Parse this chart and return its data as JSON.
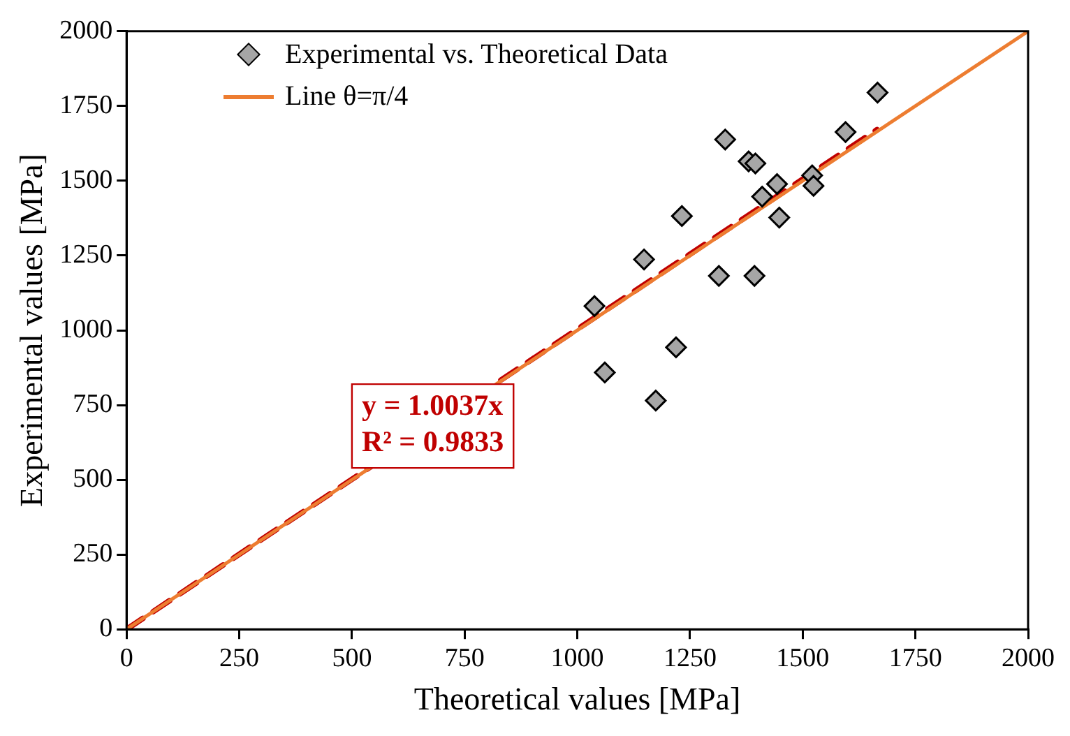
{
  "chart_data": {
    "type": "scatter",
    "xlabel": "Theoretical values [MPa]",
    "ylabel": "Experimental values [MPa]",
    "xlim": [
      0,
      2000
    ],
    "ylim": [
      0,
      2000
    ],
    "xticks": [
      0,
      250,
      500,
      750,
      1000,
      1250,
      1500,
      1750,
      2000
    ],
    "yticks": [
      0,
      250,
      500,
      750,
      1000,
      1250,
      1500,
      1750,
      2000
    ],
    "grid": false,
    "legend": "top left",
    "marker": "diamond",
    "annotations": [
      "y = 1.0037x",
      "R² = 0.9833"
    ],
    "series": [
      {
        "name": "Experimental vs. Theoretical Data",
        "type": "scatter",
        "color": "#a6a6a6",
        "x": [
          1666,
          1595,
          1328,
          1380,
          1395,
          1443,
          1521,
          1524,
          1410,
          1448,
          1232,
          1148,
          1314,
          1393,
          1038,
          1219,
          1061,
          1174
        ],
        "values": [
          1795,
          1663,
          1638,
          1565,
          1558,
          1489,
          1518,
          1483,
          1447,
          1377,
          1382,
          1237,
          1182,
          1182,
          1081,
          943,
          859,
          765
        ]
      },
      {
        "name": "Line θ=π/4",
        "type": "line",
        "color": "#ed7d31",
        "line_style": "solid",
        "marker": "none",
        "x": [
          0,
          2000
        ],
        "values": [
          0,
          2000
        ]
      },
      {
        "type": "line",
        "color": "#c00000",
        "line_style": "dashed",
        "marker": "none",
        "x": [
          0,
          1665
        ],
        "values": [
          0,
          1671
        ]
      }
    ]
  }
}
